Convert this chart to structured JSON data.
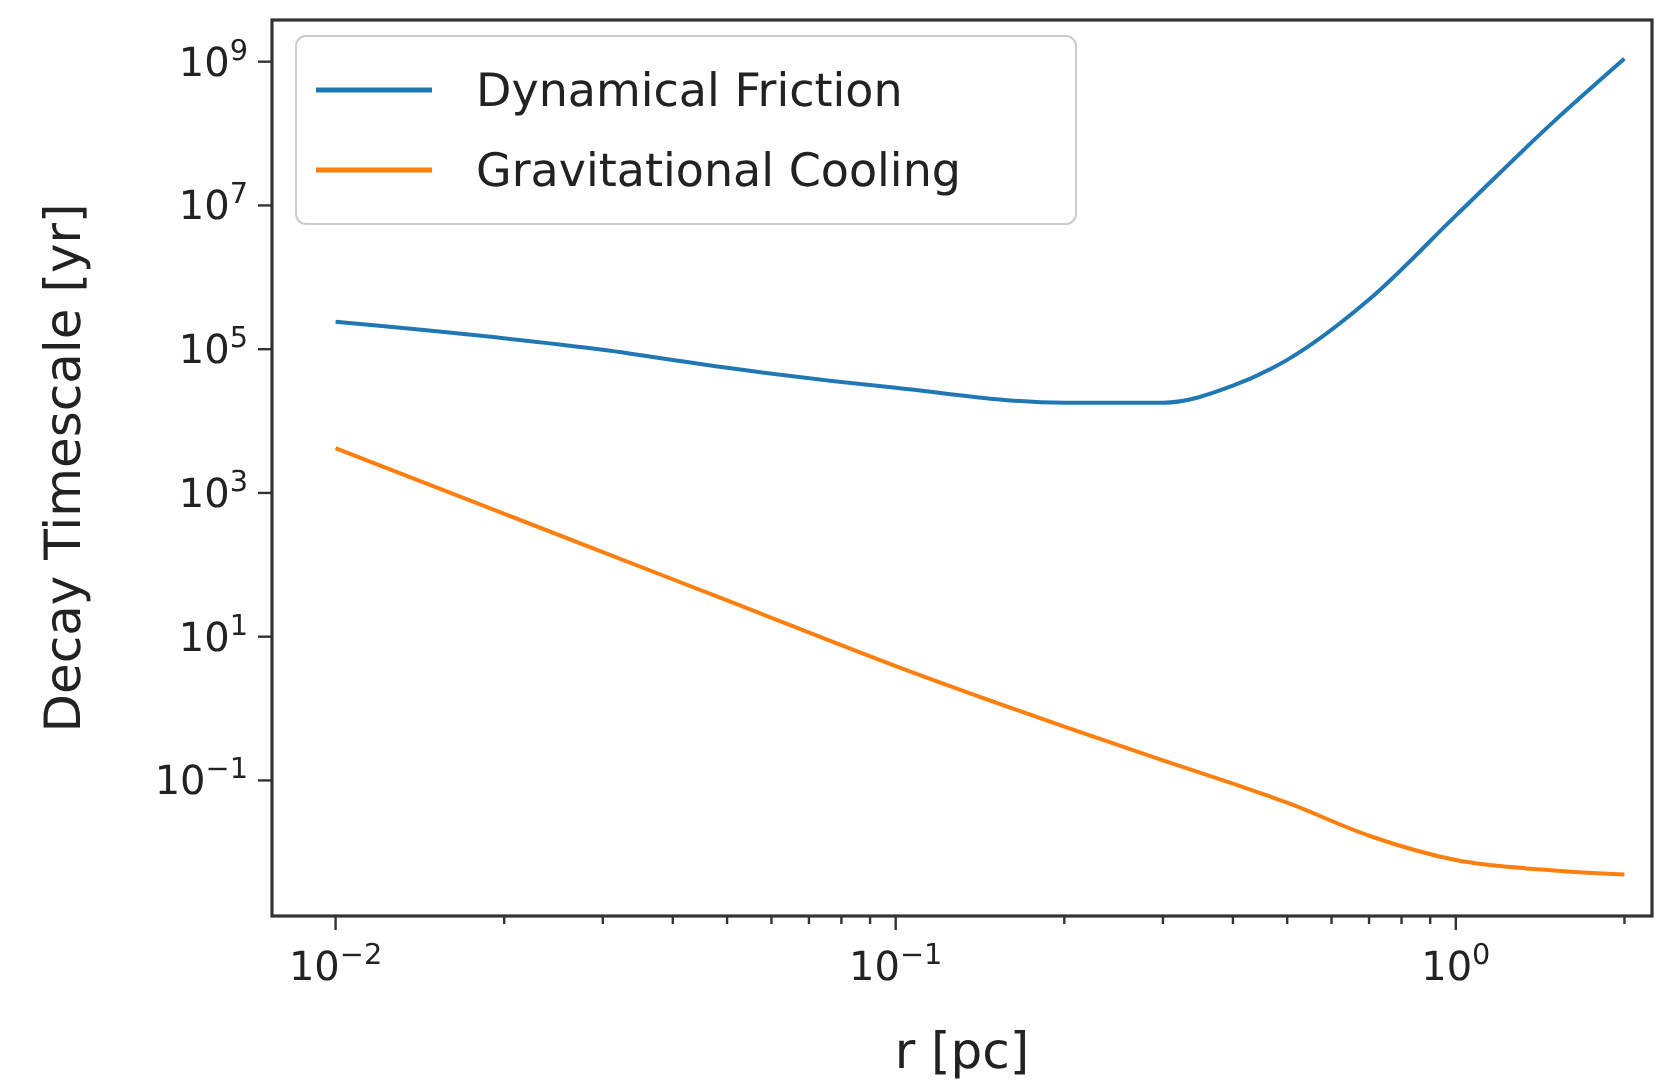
{
  "chart_data": {
    "type": "line",
    "xlabel": "r [pc]",
    "ylabel": "Decay Timescale [yr]",
    "log": "xy",
    "grid": false,
    "legend": "top left",
    "marker": "none",
    "line_style": "solid",
    "xlim": [
      0.0077,
      2.24
    ],
    "ylim": [
      0.0013,
      3800000000.0
    ],
    "xticks": [
      {
        "value": 0.01,
        "label": "10$^{−2}$"
      },
      {
        "value": 0.02,
        "label": null
      },
      {
        "value": 0.03,
        "label": null
      },
      {
        "value": 0.04,
        "label": null
      },
      {
        "value": 0.05,
        "label": null
      },
      {
        "value": 0.06,
        "label": null
      },
      {
        "value": 0.07,
        "label": null
      },
      {
        "value": 0.08,
        "label": null
      },
      {
        "value": 0.09,
        "label": null
      },
      {
        "value": 0.1,
        "label": "10$^{−1}$"
      },
      {
        "value": 0.2,
        "label": null
      },
      {
        "value": 0.3,
        "label": null
      },
      {
        "value": 0.4,
        "label": null
      },
      {
        "value": 0.5,
        "label": null
      },
      {
        "value": 0.6,
        "label": null
      },
      {
        "value": 0.7,
        "label": null
      },
      {
        "value": 0.8,
        "label": null
      },
      {
        "value": 0.9,
        "label": null
      },
      {
        "value": 1,
        "label": "10$^{0}$"
      },
      {
        "value": 2,
        "label": null
      }
    ],
    "yticks": [
      {
        "value": 0.1,
        "label": "10$^{−1}$"
      },
      {
        "value": 10,
        "label": "10$^{1}$"
      },
      {
        "value": 1000,
        "label": "10$^{3}$"
      },
      {
        "value": 100000,
        "label": "10$^{5}$"
      },
      {
        "value": 10000000,
        "label": "10$^{7}$"
      },
      {
        "value": 1000000000,
        "label": "10$^{9}$"
      }
    ],
    "x": [
      0.01,
      0.03,
      0.05,
      0.1,
      0.2,
      0.3,
      0.4,
      0.5,
      0.7,
      1,
      1.5,
      2
    ],
    "series": [
      {
        "name": "Dynamical Friction",
        "color": "#1f77b4",
        "values": [
          240000,
          98000,
          55000,
          29000,
          18000,
          18000,
          31000,
          71000,
          490000,
          7200000,
          150000000,
          1100000000
        ]
      },
      {
        "name": "Gravitational Cooling",
        "color": "#ff7f0e",
        "values": [
          4200,
          150,
          32,
          3.9,
          0.56,
          0.19,
          0.09,
          0.049,
          0.017,
          0.0078,
          0.0056,
          0.0049
        ]
      }
    ]
  }
}
